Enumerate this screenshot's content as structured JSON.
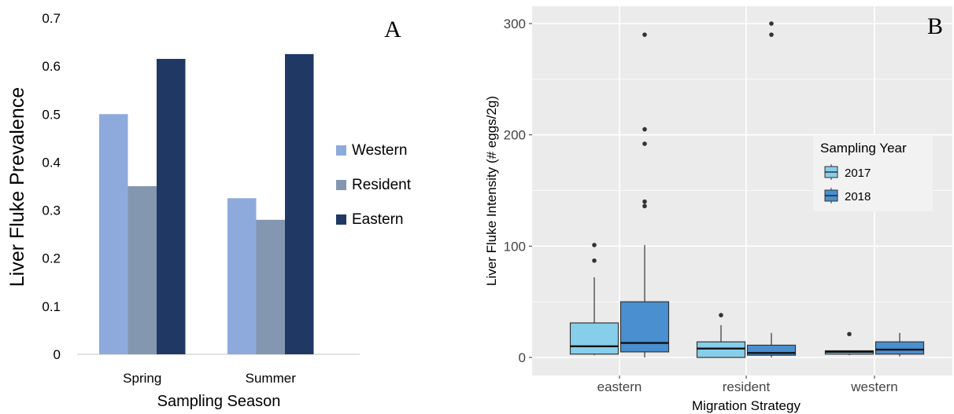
{
  "panels": {
    "a_label": "A",
    "b_label": "B"
  },
  "colors": {
    "western": "#8eaadc",
    "resident": "#8497b0",
    "eastern": "#203864",
    "year_2017": "#87ceea",
    "year_2018": "#4a8fcf",
    "panel_b_background": "#ebebeb",
    "grid": "#ffffff"
  },
  "chart_data": [
    {
      "type": "bar",
      "categories": [
        "Spring",
        "Summer"
      ],
      "series": [
        {
          "name": "Western",
          "values": [
            0.5,
            0.325
          ]
        },
        {
          "name": "Resident",
          "values": [
            0.35,
            0.28
          ]
        },
        {
          "name": "Eastern",
          "values": [
            0.615,
            0.625
          ]
        }
      ],
      "title": "",
      "xlabel": "Sampling Season",
      "ylabel": "Liver Fluke Prevalence",
      "ylim": [
        0,
        0.7
      ],
      "yticks": [
        "0",
        "0.1",
        "0.2",
        "0.3",
        "0.4",
        "0.5",
        "0.6",
        "0.7"
      ],
      "grid": false,
      "legend": "right"
    },
    {
      "type": "boxplot",
      "categories": [
        "eastern",
        "resident",
        "western"
      ],
      "series": [
        {
          "name": "2017",
          "boxes": [
            {
              "category": "eastern",
              "min": 2,
              "q1": 3,
              "median": 10,
              "q3": 31,
              "max": 72,
              "outliers": [
                87,
                101
              ]
            },
            {
              "category": "resident",
              "min": 0,
              "q1": 0,
              "median": 8,
              "q3": 14,
              "max": 29,
              "outliers": [
                38
              ]
            },
            {
              "category": "western",
              "min": 2,
              "q1": 3,
              "median": 5,
              "q3": 6,
              "max": 6,
              "outliers": [
                21
              ]
            }
          ]
        },
        {
          "name": "2018",
          "boxes": [
            {
              "category": "eastern",
              "min": 0,
              "q1": 5,
              "median": 13,
              "q3": 50,
              "max": 101,
              "outliers": [
                136,
                140,
                192,
                205,
                290
              ]
            },
            {
              "category": "resident",
              "min": 0,
              "q1": 2,
              "median": 4,
              "q3": 11,
              "max": 22,
              "outliers": [
                290,
                300
              ]
            },
            {
              "category": "western",
              "min": 1,
              "q1": 3,
              "median": 7,
              "q3": 14,
              "max": 22,
              "outliers": []
            }
          ]
        }
      ],
      "title": "",
      "xlabel": "Migration Strategy",
      "ylabel": "Liver Fluke Intensity (# eggs/2g)",
      "ylim": [
        -15,
        315
      ],
      "yticks": [
        "0",
        "100",
        "200",
        "300"
      ],
      "grid": true,
      "legend_title": "Sampling Year",
      "legend": "right"
    }
  ]
}
